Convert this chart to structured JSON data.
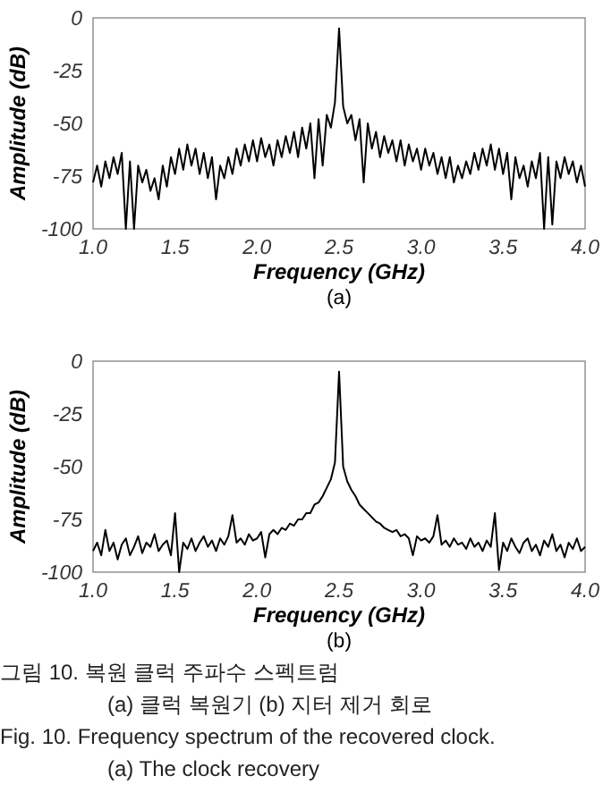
{
  "chart_data": [
    {
      "type": "line",
      "title": "(a)",
      "xlabel": "Frequency (GHz)",
      "ylabel": "Amplitude (dB)",
      "xlim": [
        1,
        4
      ],
      "ylim": [
        -100,
        0
      ],
      "xticks": [
        {
          "value": 1,
          "label": "1.0"
        },
        {
          "value": 1.5,
          "label": "1.5"
        },
        {
          "value": 2,
          "label": "2.0"
        },
        {
          "value": 2.5,
          "label": "2.5"
        },
        {
          "value": 3,
          "label": "3.0"
        },
        {
          "value": 3.5,
          "label": "3.5"
        },
        {
          "value": 4,
          "label": "4.0"
        }
      ],
      "yticks": [
        0,
        -25,
        -50,
        -75,
        -100
      ],
      "series": [
        {
          "color": "#000000",
          "x": [
            1,
            1.025,
            1.05,
            1.075,
            1.1,
            1.125,
            1.15,
            1.175,
            1.2,
            1.225,
            1.25,
            1.275,
            1.3,
            1.325,
            1.35,
            1.375,
            1.4,
            1.425,
            1.45,
            1.475,
            1.5,
            1.525,
            1.55,
            1.575,
            1.6,
            1.625,
            1.65,
            1.675,
            1.7,
            1.725,
            1.75,
            1.775,
            1.8,
            1.825,
            1.85,
            1.875,
            1.9,
            1.925,
            1.95,
            1.975,
            2,
            2.025,
            2.05,
            2.075,
            2.1,
            2.125,
            2.15,
            2.175,
            2.2,
            2.225,
            2.25,
            2.275,
            2.3,
            2.325,
            2.35,
            2.375,
            2.4,
            2.425,
            2.45,
            2.475,
            2.5,
            2.525,
            2.55,
            2.575,
            2.6,
            2.625,
            2.65,
            2.675,
            2.7,
            2.725,
            2.75,
            2.775,
            2.8,
            2.825,
            2.85,
            2.875,
            2.9,
            2.925,
            2.95,
            2.975,
            3,
            3.025,
            3.05,
            3.075,
            3.1,
            3.125,
            3.15,
            3.175,
            3.2,
            3.225,
            3.25,
            3.275,
            3.3,
            3.325,
            3.35,
            3.375,
            3.4,
            3.425,
            3.45,
            3.475,
            3.5,
            3.525,
            3.55,
            3.575,
            3.6,
            3.625,
            3.65,
            3.675,
            3.7,
            3.725,
            3.75,
            3.775,
            3.8,
            3.825,
            3.85,
            3.875,
            3.9,
            3.925,
            3.95,
            3.975,
            4
          ],
          "values": [
            -78,
            -70,
            -80,
            -68,
            -76,
            -66,
            -74,
            -64,
            -100,
            -68,
            -100,
            -70,
            -78,
            -72,
            -82,
            -76,
            -86,
            -70,
            -80,
            -66,
            -74,
            -62,
            -72,
            -60,
            -70,
            -62,
            -74,
            -64,
            -76,
            -66,
            -86,
            -70,
            -76,
            -66,
            -74,
            -62,
            -70,
            -60,
            -68,
            -58,
            -68,
            -57,
            -66,
            -60,
            -70,
            -58,
            -66,
            -56,
            -64,
            -54,
            -66,
            -52,
            -62,
            -50,
            -76,
            -48,
            -70,
            -46,
            -52,
            -40,
            -5,
            -42,
            -50,
            -46,
            -58,
            -48,
            -78,
            -50,
            -62,
            -54,
            -66,
            -56,
            -64,
            -58,
            -68,
            -58,
            -70,
            -60,
            -68,
            -62,
            -72,
            -62,
            -70,
            -64,
            -74,
            -66,
            -76,
            -66,
            -78,
            -70,
            -76,
            -68,
            -74,
            -64,
            -72,
            -62,
            -70,
            -60,
            -72,
            -62,
            -74,
            -64,
            -86,
            -66,
            -76,
            -70,
            -80,
            -68,
            -76,
            -64,
            -100,
            -66,
            -98,
            -68,
            -76,
            -66,
            -74,
            -68,
            -78,
            -70,
            -80
          ]
        }
      ]
    },
    {
      "type": "line",
      "title": "(b)",
      "xlabel": "Frequency (GHz)",
      "ylabel": "Amplitude (dB)",
      "xlim": [
        1,
        4
      ],
      "ylim": [
        -100,
        0
      ],
      "xticks": [
        {
          "value": 1,
          "label": "1.0"
        },
        {
          "value": 1.5,
          "label": "1.5"
        },
        {
          "value": 2,
          "label": "2.0"
        },
        {
          "value": 2.5,
          "label": "2.5"
        },
        {
          "value": 3,
          "label": "3.0"
        },
        {
          "value": 3.5,
          "label": "3.5"
        },
        {
          "value": 4,
          "label": "4.0"
        }
      ],
      "yticks": [
        0,
        -25,
        -50,
        -75,
        -100
      ],
      "series": [
        {
          "color": "#000000",
          "x": [
            1,
            1.025,
            1.05,
            1.075,
            1.1,
            1.125,
            1.15,
            1.175,
            1.2,
            1.225,
            1.25,
            1.275,
            1.3,
            1.325,
            1.35,
            1.375,
            1.4,
            1.425,
            1.45,
            1.475,
            1.5,
            1.525,
            1.55,
            1.575,
            1.6,
            1.625,
            1.65,
            1.675,
            1.7,
            1.725,
            1.75,
            1.775,
            1.8,
            1.825,
            1.85,
            1.875,
            1.9,
            1.925,
            1.95,
            1.975,
            2,
            2.025,
            2.05,
            2.075,
            2.1,
            2.125,
            2.15,
            2.175,
            2.2,
            2.225,
            2.25,
            2.275,
            2.3,
            2.325,
            2.35,
            2.375,
            2.4,
            2.425,
            2.45,
            2.475,
            2.5,
            2.525,
            2.55,
            2.575,
            2.6,
            2.625,
            2.65,
            2.675,
            2.7,
            2.725,
            2.75,
            2.775,
            2.8,
            2.825,
            2.85,
            2.875,
            2.9,
            2.925,
            2.95,
            2.975,
            3,
            3.025,
            3.05,
            3.075,
            3.1,
            3.125,
            3.15,
            3.175,
            3.2,
            3.225,
            3.25,
            3.275,
            3.3,
            3.325,
            3.35,
            3.375,
            3.4,
            3.425,
            3.45,
            3.475,
            3.5,
            3.525,
            3.55,
            3.575,
            3.6,
            3.625,
            3.65,
            3.675,
            3.7,
            3.725,
            3.75,
            3.775,
            3.8,
            3.825,
            3.85,
            3.875,
            3.9,
            3.925,
            3.95,
            3.975,
            4
          ],
          "values": [
            -90,
            -86,
            -92,
            -80,
            -90,
            -86,
            -94,
            -87,
            -84,
            -92,
            -88,
            -83,
            -91,
            -86,
            -88,
            -82,
            -90,
            -87,
            -85,
            -92,
            -72,
            -100,
            -86,
            -89,
            -84,
            -90,
            -86,
            -83,
            -88,
            -85,
            -90,
            -84,
            -87,
            -83,
            -73,
            -86,
            -84,
            -87,
            -82,
            -85,
            -84,
            -81,
            -93,
            -82,
            -80,
            -82,
            -79,
            -80,
            -77,
            -78,
            -75,
            -75,
            -72,
            -72,
            -68,
            -67,
            -64,
            -60,
            -56,
            -48,
            -5,
            -50,
            -57,
            -61,
            -64,
            -68,
            -70,
            -72,
            -74,
            -76,
            -77,
            -79,
            -80,
            -81,
            -80,
            -83,
            -82,
            -84,
            -92,
            -83,
            -85,
            -84,
            -86,
            -83,
            -73,
            -87,
            -85,
            -88,
            -84,
            -87,
            -86,
            -89,
            -84,
            -88,
            -86,
            -90,
            -85,
            -88,
            -72,
            -99,
            -86,
            -90,
            -84,
            -88,
            -91,
            -86,
            -84,
            -90,
            -87,
            -92,
            -85,
            -88,
            -82,
            -90,
            -87,
            -93,
            -86,
            -89,
            -84,
            -90,
            -88
          ]
        }
      ],
      "annotations": [
        "그림  10. 복원 클럭 주파수 스펙트럼",
        "(a) 클럭 복원기 (b) 지터 제거 회로",
        "Fig.   10. Frequency spectrum of the recovered clock.",
        "(a) The clock recovery"
      ]
    }
  ]
}
